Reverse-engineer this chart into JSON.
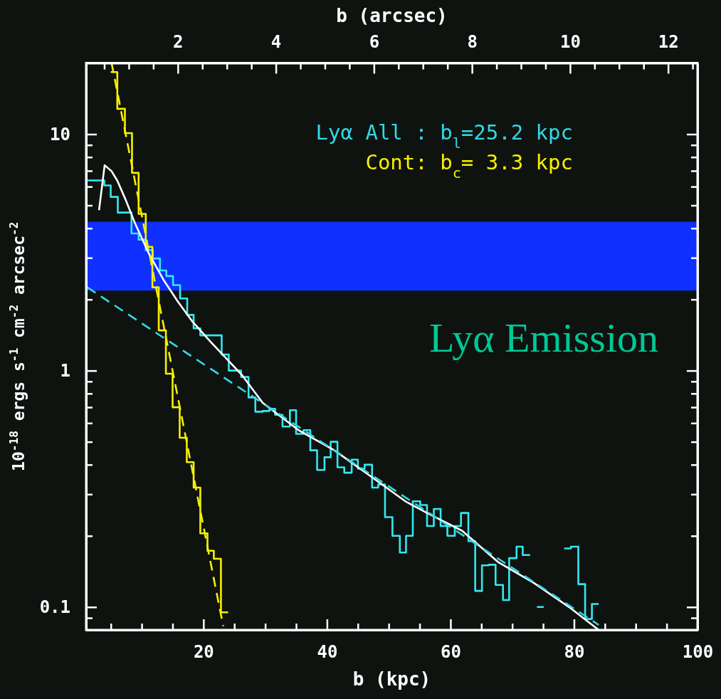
{
  "chart_data": {
    "type": "step",
    "xlabel": "b (kpc)",
    "x2label": "b (arcsec)",
    "ylabel": "10$^{-18}$ ergs s$^{-1}$ cm$^{-2}$ arcsec$^{-2}$",
    "xlim": [
      1,
      100
    ],
    "x2lim": [
      0.13,
      12.6
    ],
    "ylim": [
      0.08,
      20
    ],
    "log": "y",
    "xticks": [
      {
        "value": 5,
        "label": null
      },
      {
        "value": 10,
        "label": null
      },
      {
        "value": 15,
        "label": null
      },
      20,
      {
        "value": 25,
        "label": null
      },
      {
        "value": 30,
        "label": null
      },
      {
        "value": 35,
        "label": null
      },
      40,
      {
        "value": 45,
        "label": null
      },
      {
        "value": 50,
        "label": null
      },
      {
        "value": 55,
        "label": null
      },
      60,
      {
        "value": 65,
        "label": null
      },
      {
        "value": 70,
        "label": null
      },
      {
        "value": 75,
        "label": null
      },
      80,
      {
        "value": 85,
        "label": null
      },
      {
        "value": 90,
        "label": null
      },
      {
        "value": 95,
        "label": null
      },
      100
    ],
    "x2ticks": [
      {
        "value": 0.5,
        "label": null
      },
      {
        "value": 1,
        "label": null
      },
      {
        "value": 1.5,
        "label": null
      },
      2,
      {
        "value": 2.5,
        "label": null
      },
      {
        "value": 3,
        "label": null
      },
      {
        "value": 3.5,
        "label": null
      },
      4,
      {
        "value": 4.5,
        "label": null
      },
      {
        "value": 5,
        "label": null
      },
      {
        "value": 5.5,
        "label": null
      },
      6,
      {
        "value": 6.5,
        "label": null
      },
      {
        "value": 7,
        "label": null
      },
      {
        "value": 7.5,
        "label": null
      },
      8,
      {
        "value": 8.5,
        "label": null
      },
      {
        "value": 9,
        "label": null
      },
      {
        "value": 9.5,
        "label": null
      },
      10,
      {
        "value": 10.5,
        "label": null
      },
      {
        "value": 11,
        "label": null
      },
      {
        "value": 11.5,
        "label": null
      },
      12,
      {
        "value": 12.5,
        "label": null
      }
    ],
    "yticks": [
      {
        "value": 0.09,
        "label": null
      },
      0.1,
      {
        "value": 0.2,
        "label": null
      },
      {
        "value": 0.3,
        "label": null
      },
      {
        "value": 0.4,
        "label": null
      },
      {
        "value": 0.5,
        "label": null
      },
      {
        "value": 0.6,
        "label": null
      },
      {
        "value": 0.7,
        "label": null
      },
      {
        "value": 0.8,
        "label": null
      },
      {
        "value": 0.9,
        "label": null
      },
      1,
      {
        "value": 2,
        "label": null
      },
      {
        "value": 3,
        "label": null
      },
      {
        "value": 4,
        "label": null
      },
      {
        "value": 5,
        "label": null
      },
      {
        "value": 6,
        "label": null
      },
      {
        "value": 7,
        "label": null
      },
      {
        "value": 8,
        "label": null
      },
      {
        "value": 9,
        "label": null
      },
      10
    ],
    "bands": [
      {
        "axis": "y",
        "from": 2.18,
        "to": 4.26,
        "color": "#1030ff"
      }
    ],
    "legend": "top right",
    "annotations": [
      "Lyα Emission"
    ],
    "series": [
      {
        "type": "step",
        "color": "#33e8f0",
        "x": [
          1.18,
          3.94,
          4.98,
          6.13,
          8.35,
          9.5,
          10.66,
          11.81,
          12.96,
          13.99,
          15.07,
          16.22,
          17.37,
          18.41,
          19.49,
          22.95,
          24.1,
          26.1,
          27.3,
          28.4,
          29.6,
          30.7,
          31.6,
          32.8,
          34.0,
          35.0,
          36.2,
          37.3,
          38.4,
          39.6,
          40.6,
          41.7,
          42.8,
          44.0,
          45.0,
          46.1,
          47.3,
          48.3,
          49.4,
          50.6,
          51.8,
          52.8,
          53.9,
          55.1,
          56.2,
          57.3,
          58.4,
          59.5,
          60.7,
          61.7,
          62.9,
          64.0,
          65.1,
          66.2,
          67.3,
          68.5,
          69.5,
          70.7,
          71.7,
          72.9,
          74.0,
          75.1,
          78.4,
          79.5,
          80.7,
          81.8,
          82.9,
          84.0
        ],
        "values": [
          6.37,
          6.07,
          5.43,
          4.66,
          3.8,
          3.58,
          3.23,
          2.98,
          2.65,
          2.51,
          2.3,
          2.02,
          1.72,
          1.51,
          1.41,
          1.17,
          1.0,
          0.94,
          0.77,
          0.67,
          0.675,
          0.69,
          0.65,
          0.58,
          0.68,
          0.54,
          0.56,
          0.46,
          0.38,
          0.43,
          0.5,
          0.39,
          0.37,
          0.42,
          0.385,
          0.4,
          0.32,
          0.33,
          0.24,
          0.2,
          0.17,
          0.2,
          0.28,
          0.27,
          0.22,
          0.26,
          0.22,
          0.2,
          0.22,
          0.25,
          0.19,
          0.117,
          0.15,
          0.151,
          0.124,
          0.107,
          0.161,
          0.18,
          0.166,
          null,
          0.1,
          null,
          0.177,
          0.18,
          0.125,
          0.089,
          0.103,
          0.103
        ]
      },
      {
        "type": "step",
        "color": "#f5f000",
        "x": [
          4.98,
          6.05,
          7.28,
          8.43,
          9.5,
          10.66,
          11.73,
          12.76,
          13.92,
          15.0,
          16.15,
          17.3,
          18.41,
          19.49,
          20.65,
          21.68,
          22.83,
          23.99
        ],
        "values": [
          18.3,
          12.8,
          10.1,
          6.86,
          4.6,
          3.34,
          2.25,
          1.48,
          0.97,
          0.7,
          0.52,
          0.41,
          0.32,
          0.205,
          0.173,
          0.16,
          0.095,
          0.095
        ]
      },
      {
        "type": "line",
        "color": "#ffffff",
        "x": [
          3.09,
          4.0,
          5.09,
          6.05,
          7.4,
          8.93,
          11.23,
          13.54,
          15.84,
          18.15,
          21.2,
          26.2,
          29.6,
          35.4,
          41.2,
          46.9,
          52.7,
          56.2,
          61.9,
          67.7,
          73.4,
          79.2,
          84.0
        ],
        "values": [
          4.77,
          7.39,
          6.99,
          6.36,
          5.28,
          4.19,
          3.1,
          2.42,
          1.96,
          1.62,
          1.32,
          0.96,
          0.73,
          0.56,
          0.46,
          0.36,
          0.28,
          0.25,
          0.21,
          0.155,
          0.127,
          0.1,
          0.08
        ]
      },
      {
        "type": "line",
        "name": "Lyα All : b$_{l}$=25.2 kpc",
        "color": "#33d8e6",
        "line_style": "dashed",
        "x": [
          1.18,
          84.0
        ],
        "values": [
          2.25,
          0.084
        ]
      },
      {
        "type": "line",
        "name": "Cont: b$_{c}$= 3.3 kpc",
        "color": "#f5f000",
        "line_style": "dashed",
        "x": [
          5.12,
          23.2
        ],
        "values": [
          20,
          0.083
        ]
      }
    ]
  }
}
